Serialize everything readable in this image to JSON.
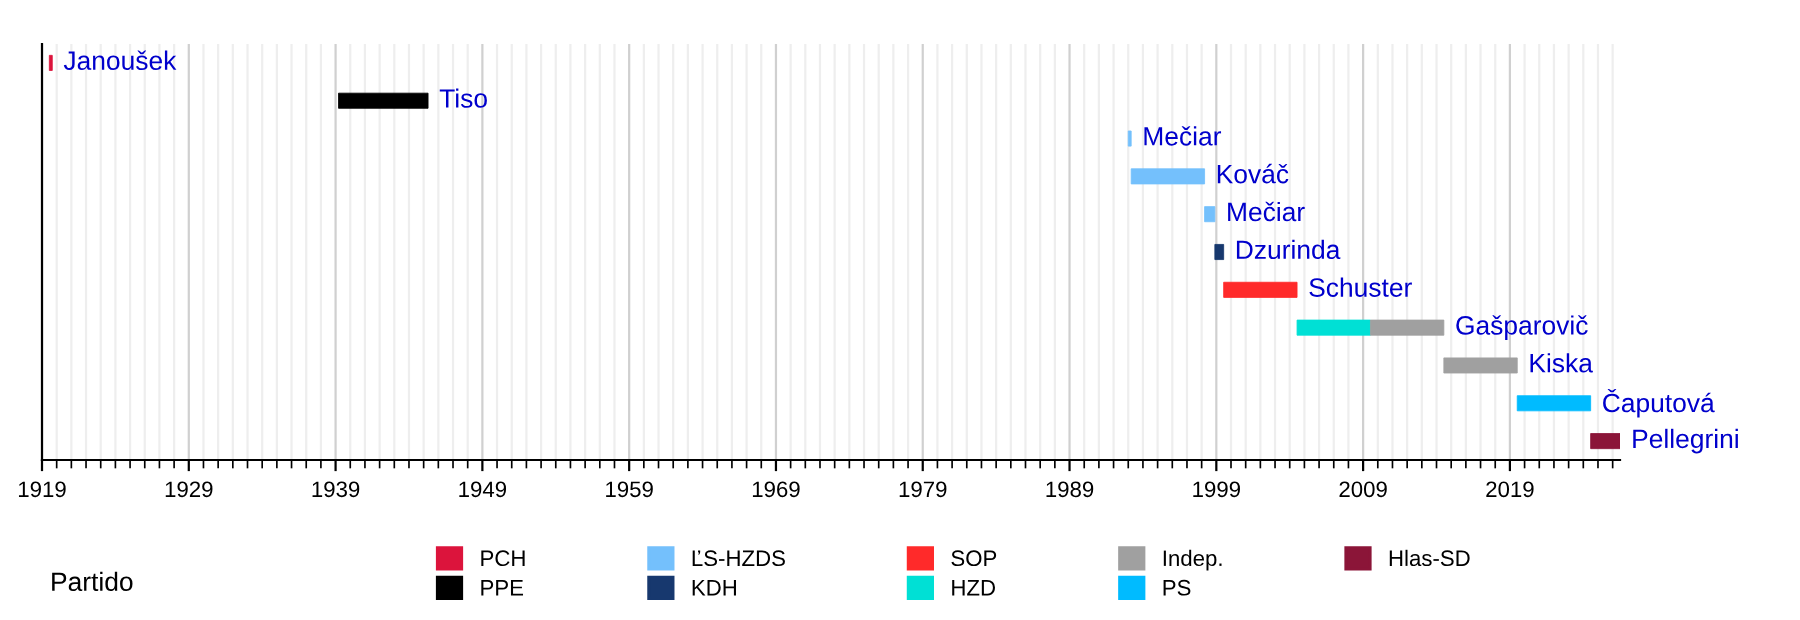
{
  "chart_data": {
    "type": "bar",
    "orientation": "horizontal",
    "categories": [
      null,
      null,
      null,
      null,
      null,
      null,
      null,
      null,
      null,
      null,
      null
    ],
    "series": [
      {
        "name": "PCH",
        "color": "#dc143c",
        "base": [
          1919.5,
          null,
          null,
          null,
          null,
          null,
          null,
          null,
          null,
          null,
          null
        ],
        "values": [
          0.2,
          null,
          null,
          null,
          null,
          null,
          null,
          null,
          null,
          null,
          null
        ]
      },
      {
        "name": "PPE",
        "color": "#000000",
        "base": [
          null,
          1939.2,
          null,
          null,
          null,
          null,
          null,
          null,
          null,
          null,
          null
        ],
        "values": [
          null,
          6.1,
          null,
          null,
          null,
          null,
          null,
          null,
          null,
          null,
          null
        ]
      },
      {
        "name": "ĽS-HZDS",
        "color": "#74c0fc",
        "base": [
          null,
          null,
          1993.0,
          1993.2,
          1998.2,
          null,
          null,
          null,
          null,
          null,
          null
        ],
        "values": [
          null,
          null,
          0.2,
          5.0,
          0.7,
          null,
          null,
          null,
          null,
          null,
          null
        ]
      },
      {
        "name": "KDH",
        "color": "#17386e",
        "base": [
          null,
          null,
          null,
          null,
          null,
          1998.9,
          null,
          null,
          null,
          null,
          null
        ],
        "values": [
          null,
          null,
          null,
          null,
          null,
          0.6,
          null,
          null,
          null,
          null,
          null
        ]
      },
      {
        "name": "SOP",
        "color": "#ff2a2a",
        "base": [
          null,
          null,
          null,
          null,
          null,
          null,
          1999.5,
          null,
          null,
          null,
          null
        ],
        "values": [
          null,
          null,
          null,
          null,
          null,
          null,
          5.0,
          null,
          null,
          null,
          null
        ]
      },
      {
        "name": "HZD",
        "color": "#00e0d5",
        "base": [
          null,
          null,
          null,
          null,
          null,
          null,
          null,
          2004.5,
          null,
          null,
          null
        ],
        "values": [
          null,
          null,
          null,
          null,
          null,
          null,
          null,
          5.0,
          null,
          null,
          null
        ]
      },
      {
        "name": "Indep.",
        "color": "#a0a0a0",
        "base": [
          null,
          null,
          null,
          null,
          null,
          null,
          null,
          2009.5,
          2014.5,
          null,
          null
        ],
        "values": [
          null,
          null,
          null,
          null,
          null,
          null,
          null,
          5.0,
          5.0,
          null,
          null
        ]
      },
      {
        "name": "PS",
        "color": "#00bbff",
        "base": [
          null,
          null,
          null,
          null,
          null,
          null,
          null,
          null,
          null,
          2019.5,
          null
        ],
        "values": [
          null,
          null,
          null,
          null,
          null,
          null,
          null,
          null,
          null,
          5.0,
          null
        ]
      },
      {
        "name": "Hlas-SD",
        "color": "#8b1538",
        "base": [
          null,
          null,
          null,
          null,
          null,
          null,
          null,
          null,
          null,
          null,
          2024.5
        ],
        "values": [
          null,
          null,
          null,
          null,
          null,
          null,
          null,
          null,
          null,
          null,
          2.0
        ]
      }
    ],
    "annotations": [
      {
        "text": "Janoušek",
        "x": 1919.7
      },
      {
        "text": "Tiso",
        "x": 1945.3
      },
      {
        "text": "Mečiar",
        "x": 1993.2
      },
      {
        "text": "Kováč",
        "x": 1998.2
      },
      {
        "text": "Mečiar",
        "x": 1998.9
      },
      {
        "text": "Dzurinda",
        "x": 1999.5
      },
      {
        "text": "Schuster",
        "x": 2004.5
      },
      {
        "text": "Gašparovič",
        "x": 2014.5
      },
      {
        "text": "Kiska",
        "x": 2019.5
      },
      {
        "text": "Čaputová",
        "x": 2024.5
      },
      {
        "text": "Pellegrini",
        "x": 2026.5
      }
    ],
    "xlim": [
      1919,
      2026.5
    ],
    "xticks": [
      1919,
      1929,
      1939,
      1949,
      1959,
      1969,
      1979,
      1989,
      1999,
      2009,
      2019
    ],
    "grid": "x",
    "legend": "bottom",
    "legend_title": "Partido",
    "tick_labels": "x"
  }
}
